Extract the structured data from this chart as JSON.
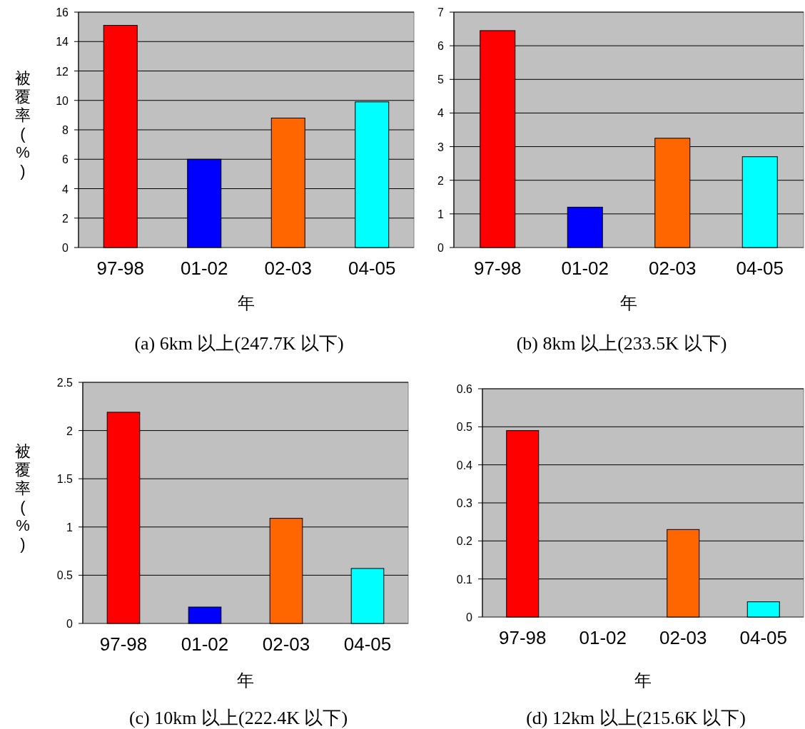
{
  "chart_data": [
    {
      "type": "bar",
      "title": "(a) 6km 以上(247.7K 以下)",
      "xlabel": "年",
      "ylabel": "被覆率(%)",
      "categories": [
        "97-98",
        "01-02",
        "02-03",
        "04-05"
      ],
      "values": [
        15.1,
        6.0,
        8.8,
        9.9
      ],
      "colors": [
        "#ff0000",
        "#0000ff",
        "#ff6600",
        "#00ffff"
      ],
      "ylim": [
        0,
        16
      ],
      "yticks": [
        0,
        2,
        4,
        6,
        8,
        10,
        12,
        14,
        16
      ],
      "grid": "y"
    },
    {
      "type": "bar",
      "title": "(b) 8km 以上(233.5K 以下)",
      "xlabel": "年",
      "categories": [
        "97-98",
        "01-02",
        "02-03",
        "04-05"
      ],
      "values": [
        6.45,
        1.2,
        3.25,
        2.7
      ],
      "colors": [
        "#ff0000",
        "#0000ff",
        "#ff6600",
        "#00ffff"
      ],
      "ylim": [
        0,
        7
      ],
      "yticks": [
        0,
        1,
        2,
        3,
        4,
        5,
        6,
        7
      ],
      "grid": "y"
    },
    {
      "type": "bar",
      "title": "(c) 10km 以上(222.4K 以下)",
      "xlabel": "年",
      "ylabel": "被覆率(%)",
      "categories": [
        "97-98",
        "01-02",
        "02-03",
        "04-05"
      ],
      "values": [
        2.19,
        0.17,
        1.09,
        0.57
      ],
      "colors": [
        "#ff0000",
        "#0000ff",
        "#ff6600",
        "#00ffff"
      ],
      "ylim": [
        0,
        2.5
      ],
      "yticks": [
        0,
        0.5,
        1,
        1.5,
        2,
        2.5
      ],
      "grid": "y"
    },
    {
      "type": "bar",
      "title": "(d) 12km 以上(215.6K 以下)",
      "xlabel": "年",
      "categories": [
        "97-98",
        "01-02",
        "02-03",
        "04-05"
      ],
      "values": [
        0.49,
        0,
        0.23,
        0.04
      ],
      "colors": [
        "#ff0000",
        "#0000ff",
        "#ff6600",
        "#00ffff"
      ],
      "ylim": [
        0,
        0.6
      ],
      "yticks": [
        0,
        0.1,
        0.2,
        0.3,
        0.4,
        0.5,
        0.6
      ],
      "grid": "y"
    }
  ]
}
